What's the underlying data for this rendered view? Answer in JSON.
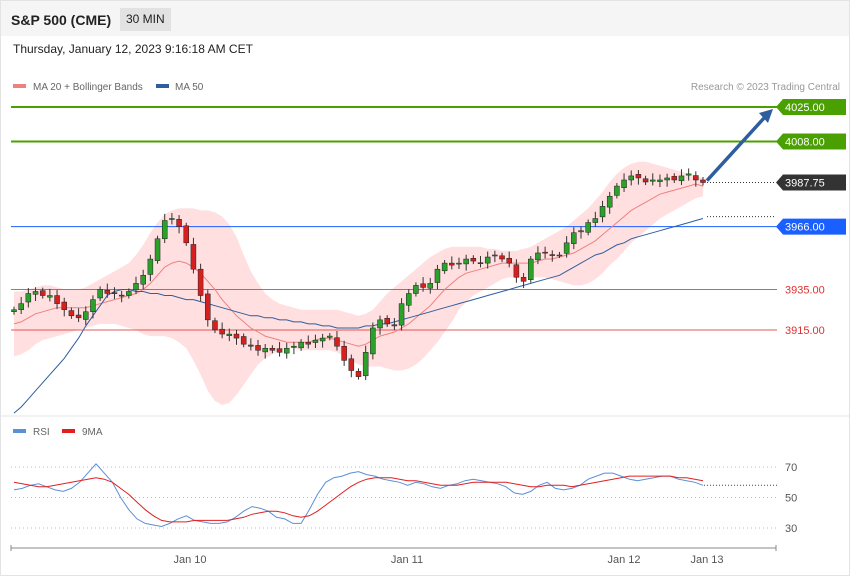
{
  "header": {
    "instrument": "S&P 500 (CME)",
    "timeframe": "30 MIN",
    "timestamp": "Thursday, January 12, 2023 9:16:18 AM CET"
  },
  "legend": {
    "ma20": "MA 20 + Bollinger Bands",
    "ma50": "MA 50",
    "copyright": "Research © 2023 Trading Central",
    "rsi": "RSI",
    "rsi_ma": "9MA"
  },
  "colors": {
    "green_level": "#4aa000",
    "blue_level": "#1a5fff",
    "red_level": "#e03030",
    "current_price": "#333333",
    "bollinger_fill": "#ffd9d9",
    "ma20": "#f08080",
    "ma50": "#2f5e9e",
    "candle_up": "#2ba02b",
    "candle_down": "#d62020",
    "rsi": "#5b8fd6",
    "rsi_ma": "#e02020",
    "arrow": "#2f5e9e"
  },
  "levels": [
    {
      "value": 4025.0,
      "label": "4025.00",
      "style": "resistance",
      "color": "#4aa000"
    },
    {
      "value": 4008.0,
      "label": "4008.00",
      "style": "resistance",
      "color": "#4aa000"
    },
    {
      "value": 3987.75,
      "label": "3987.75",
      "style": "current",
      "color": "#333333"
    },
    {
      "value": 3966.0,
      "label": "3966.00",
      "style": "pivot",
      "color": "#1a5fff"
    },
    {
      "value": 3935.0,
      "label": "3935.00",
      "style": "support",
      "color": "#e03030"
    },
    {
      "value": 3915.0,
      "label": "3915.00",
      "style": "support",
      "color": "#e03030"
    }
  ],
  "chart_data": [
    {
      "type": "candlestick",
      "title": "S&P 500 (CME)",
      "timeframe": "30 MIN",
      "x_tick_labels": [
        "Jan 10",
        "Jan 11",
        "Jan 12",
        "Jan 13"
      ],
      "ylim": [
        3873.6,
        4030.7
      ],
      "close_path": [
        3925,
        3928,
        3933,
        3934,
        3932,
        3932,
        3928,
        3925,
        3922,
        3921,
        3924,
        3930,
        3935,
        3933,
        3933,
        3932,
        3934,
        3938,
        3942,
        3950,
        3960,
        3969,
        3970,
        3966,
        3958,
        3945,
        3932,
        3920,
        3915,
        3913,
        3913,
        3911,
        3908,
        3907,
        3905,
        3906,
        3905,
        3904,
        3906,
        3907,
        3909,
        3908,
        3910,
        3911,
        3912,
        3907,
        3900,
        3895,
        3892,
        3904,
        3916,
        3920,
        3918,
        3917,
        3928,
        3933,
        3937,
        3936,
        3938,
        3945,
        3948,
        3947,
        3948,
        3950,
        3949,
        3948,
        3951,
        3952,
        3950,
        3948,
        3941,
        3939,
        3950,
        3953,
        3953,
        3952,
        3952,
        3958,
        3963,
        3964,
        3968,
        3970,
        3976,
        3981,
        3986,
        3989,
        3991,
        3990,
        3988,
        3989,
        3989,
        3990,
        3989,
        3991,
        3992,
        3989,
        3987.75
      ],
      "ma20_path": [
        3918,
        3919,
        3921,
        3923,
        3924,
        3925,
        3926,
        3926,
        3926,
        3926,
        3926,
        3927,
        3928,
        3929,
        3930,
        3931,
        3932,
        3933,
        3935,
        3938,
        3942,
        3946,
        3948,
        3949,
        3948,
        3946,
        3943,
        3939,
        3935,
        3930,
        3926,
        3922,
        3919,
        3916,
        3914,
        3912,
        3911,
        3910,
        3909,
        3909,
        3909,
        3909,
        3910,
        3911,
        3911,
        3910,
        3909,
        3908,
        3907,
        3908,
        3910,
        3912,
        3913,
        3914,
        3916,
        3918,
        3921,
        3924,
        3927,
        3931,
        3935,
        3938,
        3941,
        3943,
        3944,
        3945,
        3946,
        3947,
        3948,
        3948,
        3948,
        3948,
        3948,
        3949,
        3950,
        3950,
        3951,
        3952,
        3953,
        3955,
        3957,
        3959,
        3962,
        3965,
        3968,
        3971,
        3974,
        3976,
        3978,
        3980,
        3982,
        3983,
        3984,
        3985,
        3986,
        3987,
        3986
      ],
      "bollinger_upper_path": [
        3934,
        3934,
        3935,
        3936,
        3937,
        3937,
        3936,
        3935,
        3935,
        3935,
        3936,
        3938,
        3940,
        3942,
        3944,
        3946,
        3948,
        3952,
        3957,
        3963,
        3968,
        3972,
        3974,
        3975,
        3975,
        3975,
        3974,
        3974,
        3973,
        3971,
        3967,
        3961,
        3952,
        3944,
        3938,
        3933,
        3930,
        3928,
        3927,
        3926,
        3925,
        3925,
        3925,
        3925,
        3925,
        3925,
        3924,
        3923,
        3922,
        3923,
        3925,
        3929,
        3933,
        3936,
        3939,
        3942,
        3945,
        3948,
        3951,
        3953,
        3955,
        3956,
        3956,
        3956,
        3956,
        3956,
        3955,
        3955,
        3954,
        3954,
        3954,
        3955,
        3956,
        3958,
        3960,
        3962,
        3964,
        3966,
        3969,
        3972,
        3975,
        3979,
        3983,
        3988,
        3992,
        3995,
        3997,
        3998,
        3998,
        3997,
        3996,
        3995,
        3994,
        3993,
        3992,
        3991,
        3990
      ],
      "bollinger_lower_path": [
        3902,
        3903,
        3905,
        3908,
        3910,
        3911,
        3912,
        3913,
        3914,
        3915,
        3916,
        3917,
        3918,
        3918,
        3918,
        3917,
        3916,
        3915,
        3913,
        3912,
        3912,
        3912,
        3911,
        3909,
        3906,
        3900,
        3893,
        3885,
        3880,
        3878,
        3879,
        3883,
        3888,
        3893,
        3898,
        3901,
        3903,
        3905,
        3906,
        3906,
        3905,
        3905,
        3905,
        3905,
        3905,
        3904,
        3902,
        3900,
        3898,
        3897,
        3897,
        3897,
        3896,
        3895,
        3895,
        3896,
        3898,
        3901,
        3905,
        3909,
        3914,
        3919,
        3925,
        3929,
        3932,
        3934,
        3936,
        3938,
        3940,
        3941,
        3941,
        3941,
        3941,
        3941,
        3941,
        3940,
        3939,
        3938,
        3937,
        3937,
        3938,
        3940,
        3943,
        3947,
        3950,
        3954,
        3958,
        3961,
        3964,
        3967,
        3970,
        3972,
        3974,
        3976,
        3978,
        3980,
        3981
      ],
      "ma50_path": [
        3874,
        3877,
        3881,
        3885,
        3889,
        3893,
        3897,
        3901,
        3906,
        3911,
        3917,
        3922,
        3927,
        3932,
        3934,
        3935,
        3935,
        3934,
        3934,
        3933,
        3933,
        3932,
        3932,
        3931,
        3930,
        3930,
        3929,
        3928,
        3927,
        3926,
        3925,
        3924,
        3923,
        3922,
        3922,
        3921,
        3921,
        3920,
        3920,
        3919,
        3919,
        3918,
        3918,
        3917,
        3917,
        3916,
        3916,
        3916,
        3916,
        3917,
        3917,
        3918,
        3918,
        3919,
        3920,
        3921,
        3922,
        3923,
        3924,
        3925,
        3926,
        3927,
        3928,
        3929,
        3930,
        3931,
        3932,
        3933,
        3934,
        3935,
        3936,
        3937,
        3938,
        3939,
        3940,
        3941,
        3942,
        3944,
        3946,
        3948,
        3950,
        3952,
        3953,
        3955,
        3957,
        3958,
        3960,
        3961,
        3962,
        3963,
        3964,
        3965,
        3966,
        3967,
        3968,
        3969,
        3970
      ]
    },
    {
      "type": "line",
      "title": "RSI",
      "series": [
        {
          "name": "RSI",
          "values": [
            55,
            56,
            58,
            59,
            57,
            55,
            54,
            56,
            60,
            66,
            72,
            66,
            60,
            50,
            42,
            36,
            33,
            32,
            31,
            33,
            36,
            38,
            35,
            34,
            33,
            33,
            34,
            37,
            41,
            44,
            43,
            41,
            37,
            36,
            33,
            33,
            42,
            52,
            60,
            63,
            64,
            66,
            67,
            65,
            64,
            62,
            61,
            60,
            58,
            60,
            59,
            57,
            56,
            58,
            59,
            61,
            62,
            61,
            60,
            59,
            57,
            53,
            52,
            54,
            58,
            60,
            56,
            55,
            56,
            58,
            62,
            64,
            66,
            66,
            64,
            62,
            61,
            62,
            63,
            64,
            64,
            62,
            61,
            60,
            58
          ]
        },
        {
          "name": "9MA",
          "values": [
            60,
            59,
            58,
            57,
            57,
            58,
            59,
            60,
            61,
            62,
            63,
            62,
            60,
            56,
            52,
            47,
            42,
            38,
            35,
            34,
            34,
            34,
            35,
            35,
            35,
            35,
            35,
            36,
            37,
            39,
            40,
            41,
            41,
            40,
            38,
            37,
            38,
            41,
            45,
            49,
            53,
            57,
            60,
            62,
            63,
            63,
            63,
            62,
            61,
            61,
            60,
            59,
            58,
            58,
            58,
            59,
            60,
            60,
            60,
            60,
            60,
            59,
            58,
            57,
            57,
            58,
            58,
            58,
            57,
            58,
            59,
            60,
            61,
            62,
            63,
            64,
            64,
            64,
            64,
            64,
            64,
            63,
            63,
            62,
            61
          ]
        }
      ],
      "yticks": [
        70,
        50,
        30
      ],
      "ylim": [
        23,
        80
      ]
    }
  ]
}
